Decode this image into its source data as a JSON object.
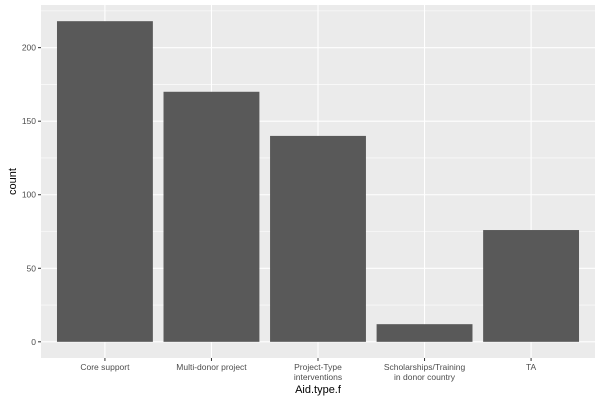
{
  "chart_data": {
    "type": "bar",
    "categories": [
      [
        "Core support"
      ],
      [
        "Multi-donor project"
      ],
      [
        "Project-Type",
        "interventions"
      ],
      [
        "Scholarships/Training",
        "in donor country"
      ],
      [
        "TA"
      ]
    ],
    "values": [
      218,
      170,
      140,
      12,
      76
    ],
    "xlabel": "Aid.type.f",
    "ylabel": "count",
    "yticks": [
      0,
      50,
      100,
      150,
      200
    ],
    "ylim": [
      -11,
      229
    ],
    "grid": true,
    "colors": {
      "panel": "#ebebeb",
      "grid_major": "#ffffff",
      "bar": "#595959",
      "tick_text": "#4d4d4d",
      "tick_mark": "#333333"
    }
  }
}
